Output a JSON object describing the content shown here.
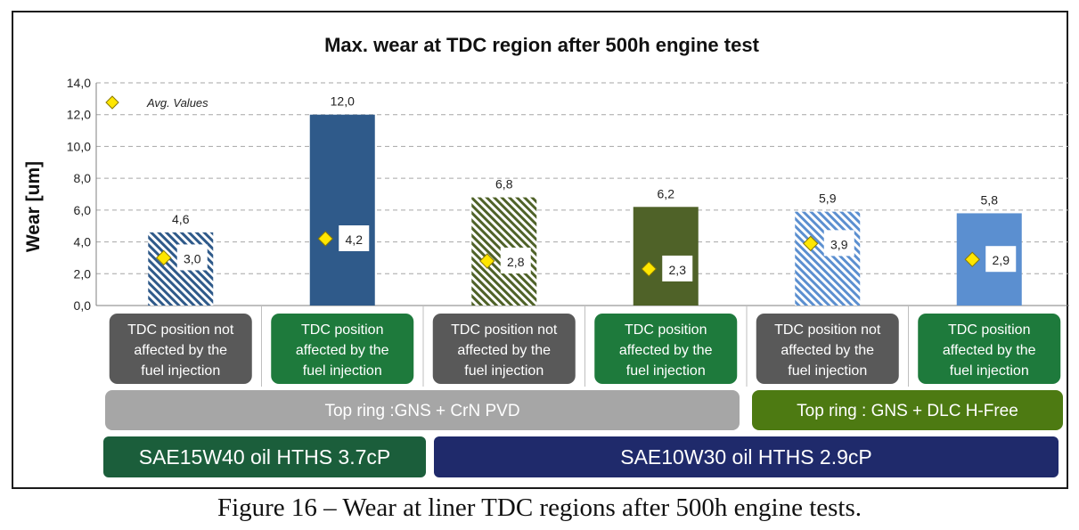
{
  "chart_data": {
    "type": "bar",
    "title": "Max. wear at TDC region after 500h engine test",
    "ylabel": "Wear [um]",
    "ylim": [
      0,
      14
    ],
    "yticks": [
      "0,0",
      "2,0",
      "4,0",
      "6,0",
      "8,0",
      "10,0",
      "12,0",
      "14,0"
    ],
    "grid": true,
    "legend": {
      "label": "Avg. Values",
      "placement": "top-left"
    },
    "bars": [
      {
        "value": 4.6,
        "label": "4,6",
        "avg": 3.0,
        "avg_label": "3,0",
        "color": "#2f5a8a",
        "pattern": "hatch"
      },
      {
        "value": 12.0,
        "label": "12,0",
        "avg": 4.2,
        "avg_label": "4,2",
        "color": "#2f5a8a",
        "pattern": "solid"
      },
      {
        "value": 6.8,
        "label": "6,8",
        "avg": 2.8,
        "avg_label": "2,8",
        "color": "#4f6228",
        "pattern": "hatch"
      },
      {
        "value": 6.2,
        "label": "6,2",
        "avg": 2.3,
        "avg_label": "2,3",
        "color": "#4f6228",
        "pattern": "solid"
      },
      {
        "value": 5.9,
        "label": "5,9",
        "avg": 3.9,
        "avg_label": "3,9",
        "color": "#5b8fd0",
        "pattern": "hatch"
      },
      {
        "value": 5.8,
        "label": "5,8",
        "avg": 2.9,
        "avg_label": "2,9",
        "color": "#5b8fd0",
        "pattern": "solid"
      }
    ],
    "categories": [
      [
        "TDC position not",
        "affected by the",
        "fuel injection"
      ],
      [
        "TDC position",
        "affected by the",
        "fuel injection"
      ],
      [
        "TDC position not",
        "affected by the",
        "fuel injection"
      ],
      [
        "TDC position",
        "affected by the",
        "fuel injection"
      ],
      [
        "TDC position not",
        "affected by the",
        "fuel injection"
      ],
      [
        "TDC position",
        "affected by the",
        "fuel injection"
      ]
    ],
    "category_colors": [
      "#595959",
      "#1e7a3c",
      "#595959",
      "#1e7a3c",
      "#595959",
      "#1e7a3c"
    ],
    "ring_groups": [
      {
        "label": "Top ring :GNS + CrN PVD",
        "bars": [
          0,
          3
        ],
        "color": "#a6a6a6"
      },
      {
        "label": "Top ring : GNS + DLC H-Free",
        "bars": [
          4,
          5
        ],
        "color": "#4d7a12"
      }
    ],
    "oil_groups": [
      {
        "label": "SAE15W40 oil HTHS 3.7cP",
        "bars": [
          0,
          1
        ],
        "color": "#1b5e3b"
      },
      {
        "label": "SAE10W30 oil HTHS 2.9cP",
        "bars": [
          2,
          5
        ],
        "color": "#1f2a6b"
      }
    ]
  },
  "caption": "Figure 16 – Wear at liner TDC regions after 500h engine tests."
}
